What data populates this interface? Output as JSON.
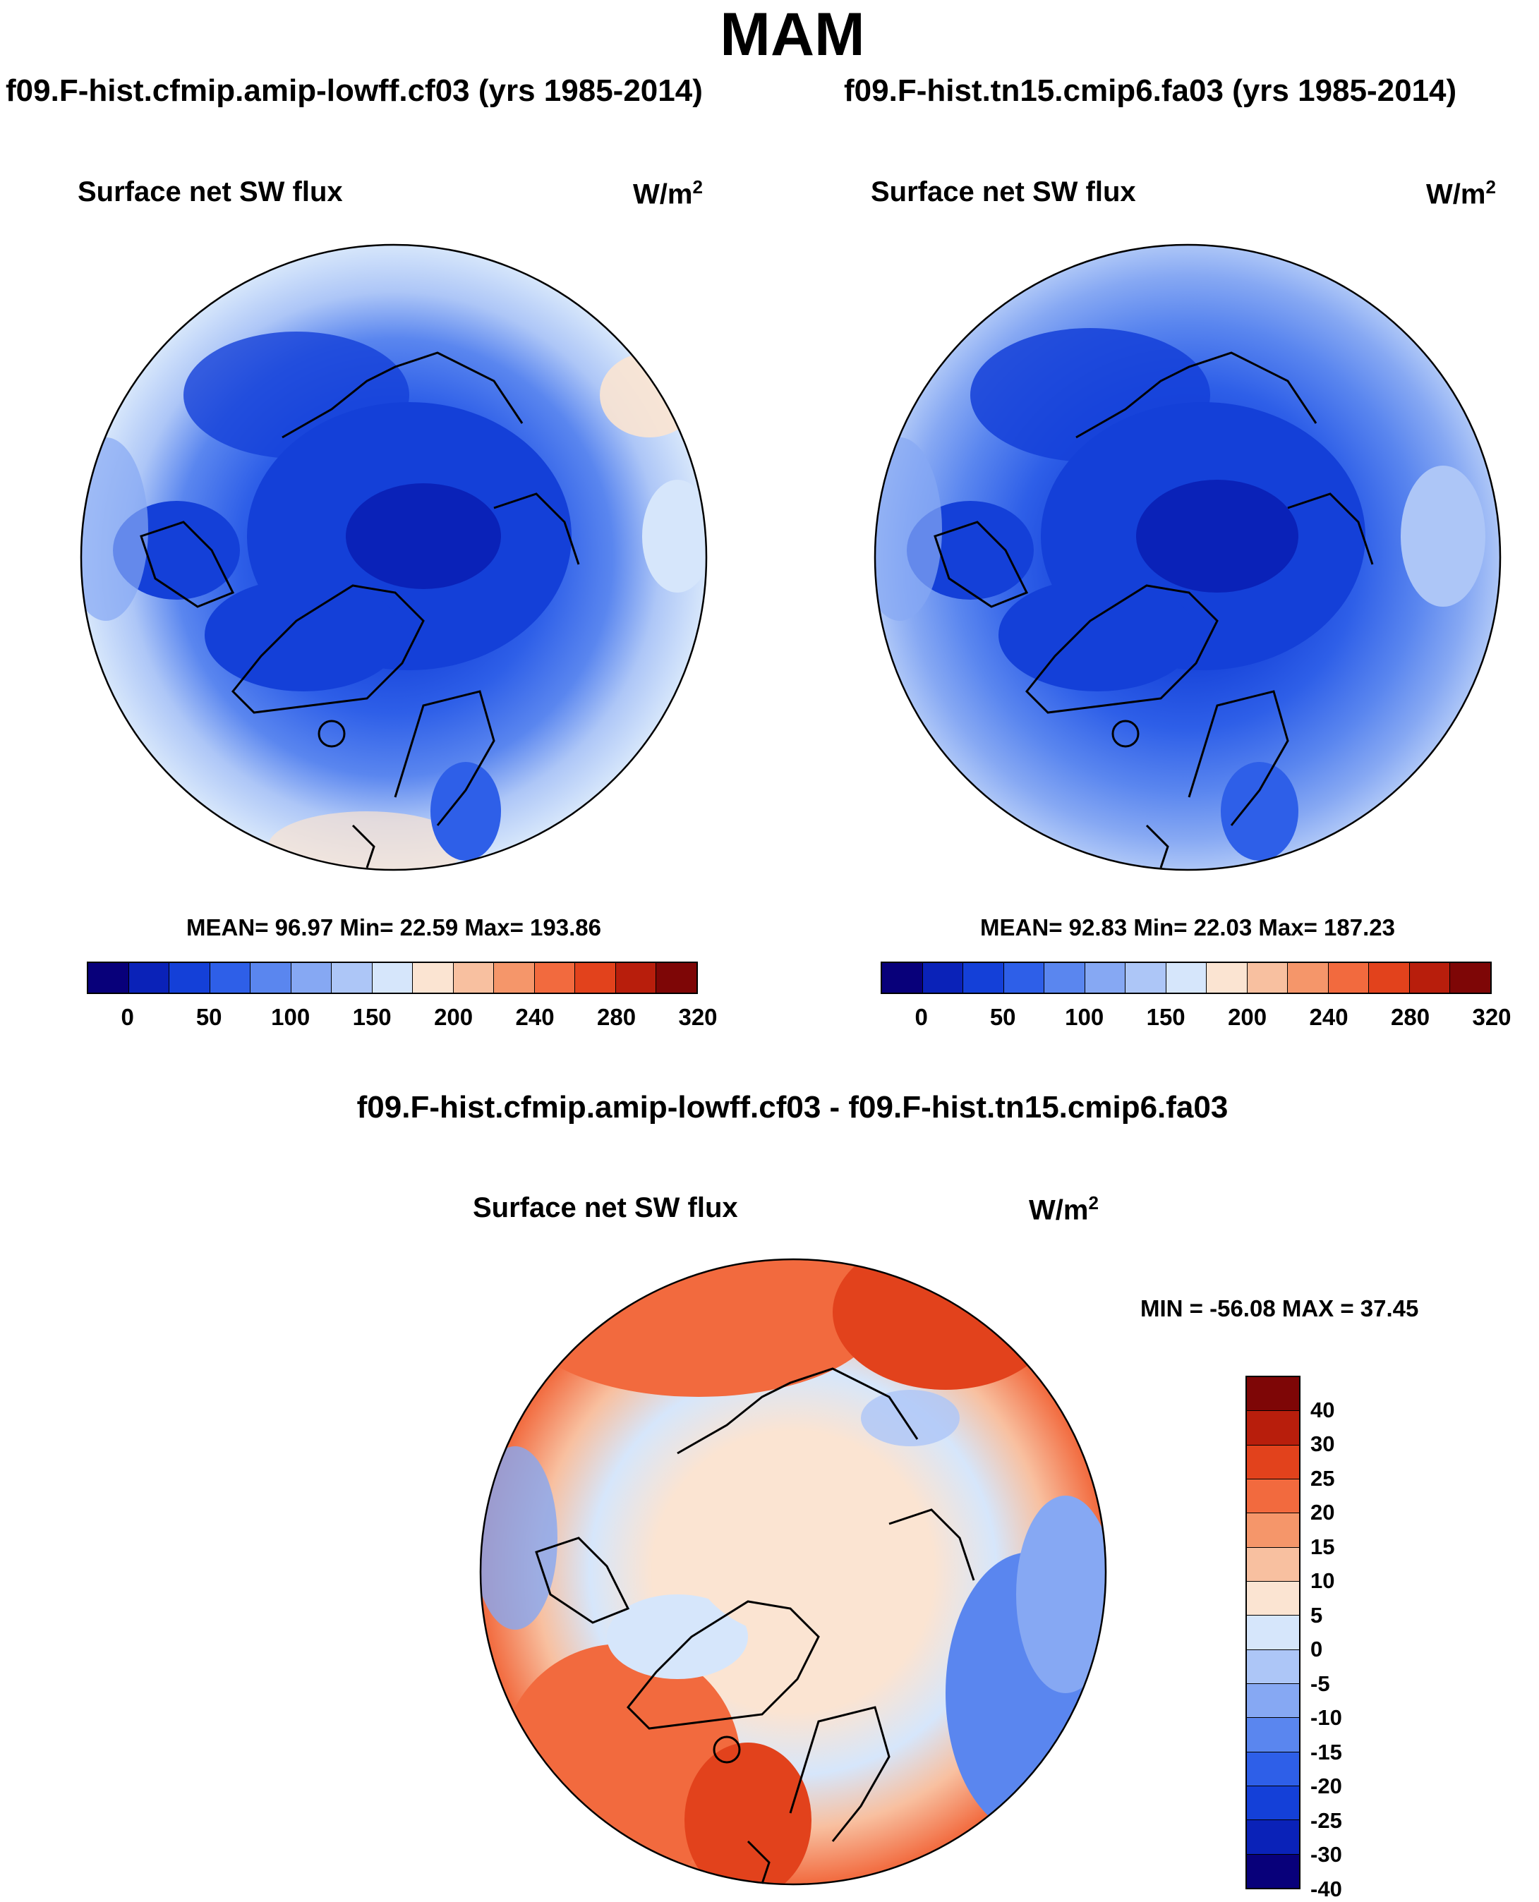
{
  "page": {
    "title": "MAM",
    "diff_title": "f09.F-hist.cfmip.amip-lowff.cf03 - f09.F-hist.tn15.cmip6.fa03"
  },
  "panels": [
    {
      "case": "f09.F-hist.cfmip.amip-lowff.cf03 (yrs 1985-2014)",
      "label": "Surface net SW flux",
      "units": "W/m",
      "units_sup": "2",
      "stats": "MEAN=  96.97  Min=  22.59  Max= 193.86"
    },
    {
      "case": "f09.F-hist.tn15.cmip6.fa03 (yrs 1985-2014)",
      "label": "Surface net SW flux",
      "units": "W/m",
      "units_sup": "2",
      "stats": "MEAN=  92.83  Min=  22.03  Max= 187.23"
    },
    {
      "label": "Surface net SW flux",
      "units": "W/m",
      "units_sup": "2",
      "stats": "MIN = -56.08 MAX =  37.45"
    }
  ],
  "colorbar_abs": {
    "colors": [
      "#08007a",
      "#0a22b8",
      "#1440d8",
      "#2e5fe8",
      "#5a86ef",
      "#86a8f3",
      "#adc6f7",
      "#d6e6fb",
      "#fbe4d2",
      "#f8c0a0",
      "#f5966a",
      "#f26a3e",
      "#e2421c",
      "#b81e0c",
      "#7e0606"
    ],
    "ticks": [
      "0",
      "50",
      "100",
      "150",
      "200",
      "240",
      "280",
      "320"
    ]
  },
  "colorbar_diff": {
    "colors": [
      "#7e0606",
      "#b81e0c",
      "#e2421c",
      "#f26a3e",
      "#f5966a",
      "#f8c0a0",
      "#fbe4d2",
      "#d6e6fb",
      "#adc6f7",
      "#86a8f3",
      "#5a86ef",
      "#2e5fe8",
      "#1440d8",
      "#0a22b8",
      "#08007a"
    ],
    "ticks": [
      "40",
      "30",
      "25",
      "20",
      "15",
      "10",
      "5",
      "0",
      "-5",
      "-10",
      "-15",
      "-20",
      "-25",
      "-30",
      "-40"
    ]
  },
  "chart_data": [
    {
      "type": "heatmap",
      "projection": "north polar stereographic",
      "title": "f09.F-hist.cfmip.amip-lowff.cf03 (yrs 1985-2014)",
      "variable": "Surface net SW flux",
      "units": "W/m2",
      "mean": 96.97,
      "min": 22.59,
      "max": 193.86,
      "contour_levels": [
        0,
        25,
        50,
        75,
        100,
        125,
        150,
        175,
        200,
        220,
        240,
        260,
        280,
        300,
        320
      ]
    },
    {
      "type": "heatmap",
      "projection": "north polar stereographic",
      "title": "f09.F-hist.tn15.cmip6.fa03 (yrs 1985-2014)",
      "variable": "Surface net SW flux",
      "units": "W/m2",
      "mean": 92.83,
      "min": 22.03,
      "max": 187.23,
      "contour_levels": [
        0,
        25,
        50,
        75,
        100,
        125,
        150,
        175,
        200,
        220,
        240,
        260,
        280,
        300,
        320
      ]
    },
    {
      "type": "heatmap",
      "projection": "north polar stereographic",
      "title": "f09.F-hist.cfmip.amip-lowff.cf03 - f09.F-hist.tn15.cmip6.fa03",
      "variable": "Surface net SW flux",
      "units": "W/m2",
      "min": -56.08,
      "max": 37.45,
      "contour_levels": [
        -40,
        -30,
        -25,
        -20,
        -15,
        -10,
        -5,
        0,
        5,
        10,
        15,
        20,
        25,
        30,
        40
      ]
    }
  ]
}
